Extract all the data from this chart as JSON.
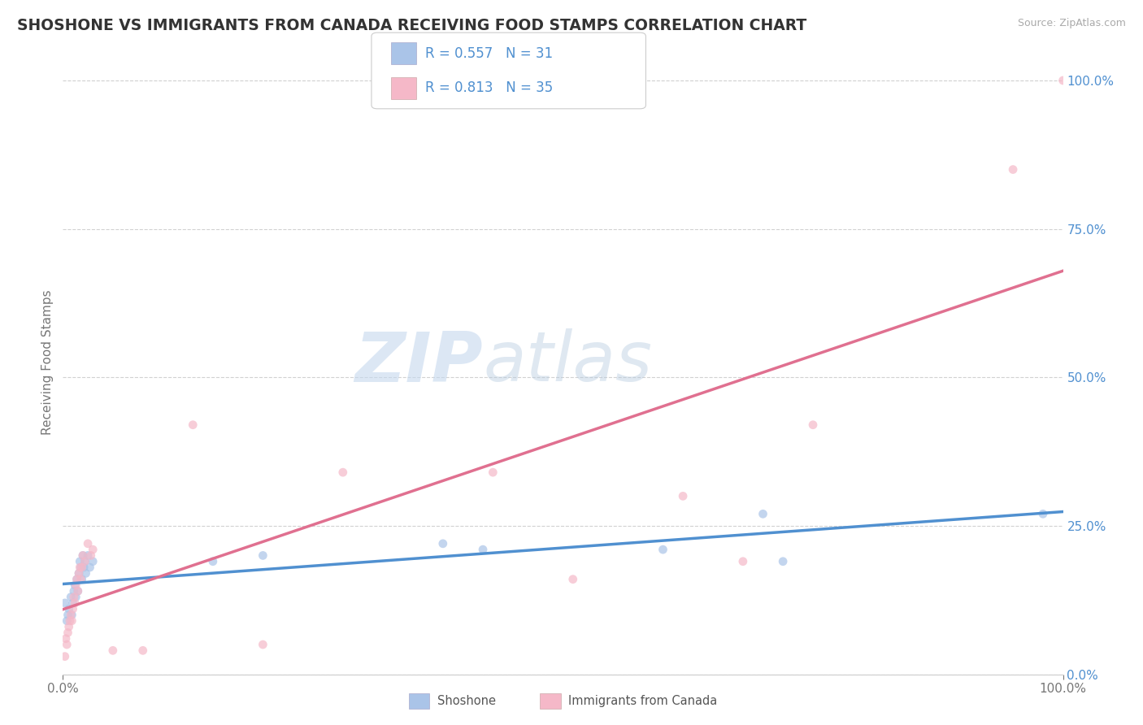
{
  "title": "SHOSHONE VS IMMIGRANTS FROM CANADA RECEIVING FOOD STAMPS CORRELATION CHART",
  "source_text": "Source: ZipAtlas.com",
  "ylabel": "Receiving Food Stamps",
  "watermark_zip": "ZIP",
  "watermark_atlas": "atlas",
  "legend_r1": "R = 0.557",
  "legend_n1": "N = 31",
  "legend_r2": "R = 0.813",
  "legend_n2": "N = 35",
  "legend_label1": "Shoshone",
  "legend_label2": "Immigrants from Canada",
  "shoshone_color": "#aac4e8",
  "canada_color": "#f5b8c8",
  "shoshone_line_color": "#5090d0",
  "canada_line_color": "#e07090",
  "scatter_alpha": 0.7,
  "scatter_size": 60,
  "shoshone_scatter": [
    [
      0.002,
      0.12
    ],
    [
      0.004,
      0.09
    ],
    [
      0.005,
      0.1
    ],
    [
      0.006,
      0.11
    ],
    [
      0.008,
      0.13
    ],
    [
      0.009,
      0.1
    ],
    [
      0.01,
      0.12
    ],
    [
      0.011,
      0.14
    ],
    [
      0.012,
      0.15
    ],
    [
      0.013,
      0.13
    ],
    [
      0.014,
      0.16
    ],
    [
      0.015,
      0.14
    ],
    [
      0.016,
      0.17
    ],
    [
      0.017,
      0.19
    ],
    [
      0.018,
      0.18
    ],
    [
      0.019,
      0.16
    ],
    [
      0.02,
      0.2
    ],
    [
      0.021,
      0.18
    ],
    [
      0.022,
      0.19
    ],
    [
      0.023,
      0.17
    ],
    [
      0.025,
      0.2
    ],
    [
      0.027,
      0.18
    ],
    [
      0.03,
      0.19
    ],
    [
      0.15,
      0.19
    ],
    [
      0.2,
      0.2
    ],
    [
      0.38,
      0.22
    ],
    [
      0.42,
      0.21
    ],
    [
      0.6,
      0.21
    ],
    [
      0.7,
      0.27
    ],
    [
      0.72,
      0.19
    ],
    [
      0.98,
      0.27
    ]
  ],
  "canada_scatter": [
    [
      0.002,
      0.03
    ],
    [
      0.003,
      0.06
    ],
    [
      0.004,
      0.05
    ],
    [
      0.005,
      0.07
    ],
    [
      0.006,
      0.08
    ],
    [
      0.007,
      0.09
    ],
    [
      0.008,
      0.1
    ],
    [
      0.009,
      0.09
    ],
    [
      0.01,
      0.11
    ],
    [
      0.011,
      0.13
    ],
    [
      0.012,
      0.12
    ],
    [
      0.013,
      0.15
    ],
    [
      0.014,
      0.16
    ],
    [
      0.015,
      0.14
    ],
    [
      0.016,
      0.17
    ],
    [
      0.017,
      0.18
    ],
    [
      0.018,
      0.16
    ],
    [
      0.019,
      0.18
    ],
    [
      0.02,
      0.2
    ],
    [
      0.022,
      0.19
    ],
    [
      0.025,
      0.22
    ],
    [
      0.028,
      0.2
    ],
    [
      0.03,
      0.21
    ],
    [
      0.05,
      0.04
    ],
    [
      0.08,
      0.04
    ],
    [
      0.13,
      0.42
    ],
    [
      0.2,
      0.05
    ],
    [
      0.28,
      0.34
    ],
    [
      0.43,
      0.34
    ],
    [
      0.51,
      0.16
    ],
    [
      0.62,
      0.3
    ],
    [
      0.68,
      0.19
    ],
    [
      0.75,
      0.42
    ],
    [
      0.95,
      0.85
    ],
    [
      1.0,
      1.0
    ]
  ],
  "xlim": [
    0.0,
    1.0
  ],
  "ylim": [
    0.0,
    1.05
  ],
  "yticks": [
    0.0,
    0.25,
    0.5,
    0.75,
    1.0
  ],
  "ytick_labels": [
    "0.0%",
    "25.0%",
    "50.0%",
    "75.0%",
    "100.0%"
  ],
  "background_color": "#ffffff",
  "grid_color": "#cccccc",
  "title_fontsize": 13.5,
  "axis_fontsize": 11,
  "tick_fontsize": 11
}
